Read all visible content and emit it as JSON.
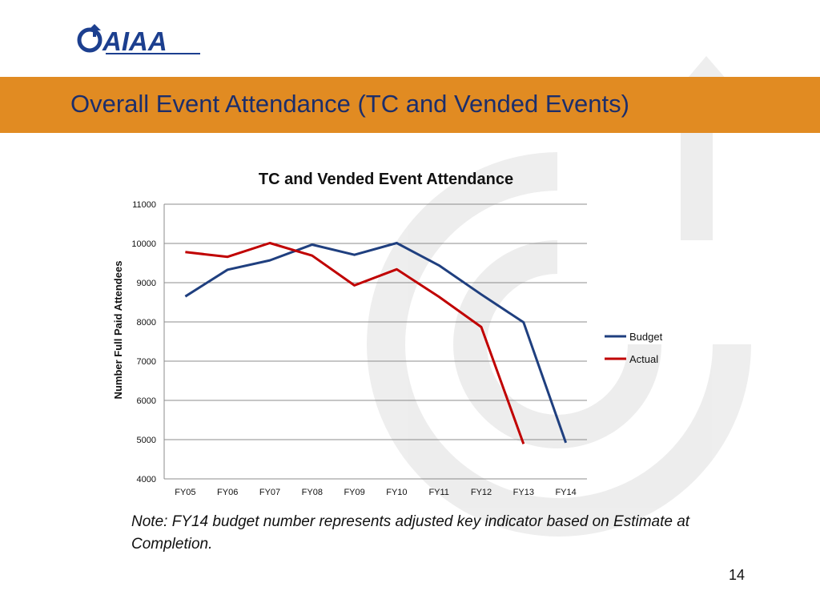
{
  "header": {
    "logo_text": "AIAA",
    "title": "Overall Event Attendance (TC and Vended Events)",
    "band_color": "#e18b22",
    "title_color": "#1c2e6b"
  },
  "note": "Note: FY14 budget number represents adjusted key indicator based on Estimate at Completion.",
  "page_number": "14",
  "chart_data": {
    "type": "line",
    "title": "TC and Vended Event Attendance",
    "xlabel": "",
    "ylabel": "Number Full Paid Attendees",
    "ylim": [
      4000,
      11000
    ],
    "yticks": [
      4000,
      5000,
      6000,
      7000,
      8000,
      9000,
      10000,
      11000
    ],
    "grid": true,
    "legend": "right",
    "categories": [
      "FY05",
      "FY06",
      "FY07",
      "FY08",
      "FY09",
      "FY10",
      "FY11",
      "FY12",
      "FY13",
      "FY14"
    ],
    "series": [
      {
        "name": "Budget",
        "color": "#1f3f7f",
        "values": [
          8650,
          9330,
          9570,
          9970,
          9710,
          10010,
          9440,
          8700,
          7990,
          4920
        ]
      },
      {
        "name": "Actual",
        "color": "#c00000",
        "values": [
          9780,
          9660,
          10010,
          9690,
          8930,
          9340,
          8640,
          7870,
          4890,
          null
        ]
      }
    ]
  }
}
